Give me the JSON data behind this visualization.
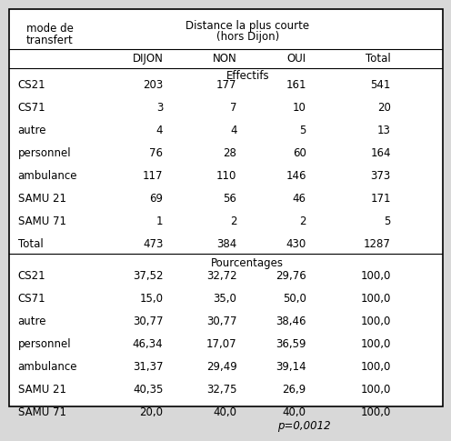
{
  "title_line1": "Distance la plus courte",
  "title_line2": "(hors Dijon)",
  "col_headers": [
    "DIJON",
    "NON",
    "OUI",
    "Total"
  ],
  "section1_label": "Effectifs",
  "section2_label": "Pourcentages",
  "row_labels_eff": [
    "CS21",
    "CS71",
    "autre",
    "personnel",
    "ambulance",
    "SAMU 21",
    "SAMU 71",
    "Total"
  ],
  "effectifs": [
    [
      "203",
      "177",
      "161",
      "541"
    ],
    [
      "3",
      "7",
      "10",
      "20"
    ],
    [
      "4",
      "4",
      "5",
      "13"
    ],
    [
      "76",
      "28",
      "60",
      "164"
    ],
    [
      "117",
      "110",
      "146",
      "373"
    ],
    [
      "69",
      "56",
      "46",
      "171"
    ],
    [
      "1",
      "2",
      "2",
      "5"
    ],
    [
      "473",
      "384",
      "430",
      "1287"
    ]
  ],
  "row_labels_pct": [
    "CS21",
    "CS71",
    "autre",
    "personnel",
    "ambulance",
    "SAMU 21",
    "SAMU 71"
  ],
  "pourcentages": [
    [
      "37,52",
      "32,72",
      "29,76",
      "100,0"
    ],
    [
      "15,0",
      "35,0",
      "50,0",
      "100,0"
    ],
    [
      "30,77",
      "30,77",
      "38,46",
      "100,0"
    ],
    [
      "46,34",
      "17,07",
      "36,59",
      "100,0"
    ],
    [
      "31,37",
      "29,49",
      "39,14",
      "100,0"
    ],
    [
      "40,35",
      "32,75",
      "26,9",
      "100,0"
    ],
    [
      "20,0",
      "40,0",
      "40,0",
      "100,0"
    ]
  ],
  "pvalue": "p=0,0012",
  "bg_color": "#d8d8d8",
  "inner_bg_color": "#ffffff"
}
